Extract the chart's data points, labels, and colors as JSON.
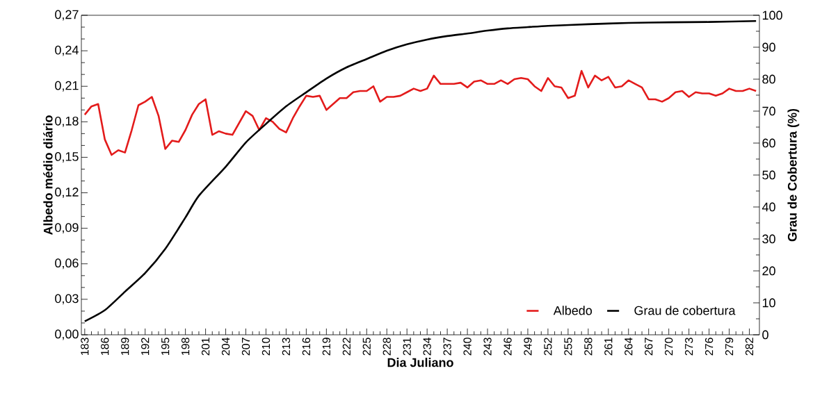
{
  "chart_data": {
    "type": "line",
    "xlabel": "Dia Juliano",
    "ylabel": "Albedo médio diário",
    "y2label": "Grau de Cobertura (%)",
    "xlim": [
      182.5,
      283.5
    ],
    "xticks": [
      183,
      186,
      189,
      192,
      195,
      198,
      201,
      204,
      207,
      210,
      213,
      216,
      219,
      222,
      225,
      228,
      231,
      234,
      237,
      240,
      243,
      246,
      249,
      252,
      255,
      258,
      261,
      264,
      267,
      270,
      273,
      276,
      279,
      282
    ],
    "ylim": [
      0,
      0.27
    ],
    "yticks": [
      {
        "value": 0,
        "label": "0,00"
      },
      {
        "value": 0.03,
        "label": "0,03"
      },
      {
        "value": 0.06,
        "label": "0,06"
      },
      {
        "value": 0.09,
        "label": "0,09"
      },
      {
        "value": 0.12,
        "label": "0,12"
      },
      {
        "value": 0.15,
        "label": "0,15"
      },
      {
        "value": 0.18,
        "label": "0,18"
      },
      {
        "value": 0.21,
        "label": "0,21"
      },
      {
        "value": 0.24,
        "label": "0,24"
      },
      {
        "value": 0.27,
        "label": "0,27"
      }
    ],
    "y2lim": [
      0,
      100
    ],
    "y2ticks": [
      0,
      10,
      20,
      30,
      40,
      50,
      60,
      70,
      80,
      90,
      100
    ],
    "legend": "bottom right",
    "grid": false,
    "series": [
      {
        "name": "Albedo",
        "color": "#e31b1b",
        "x": [
          183,
          184,
          185,
          186,
          187,
          188,
          189,
          190,
          191,
          192,
          193,
          194,
          195,
          196,
          197,
          198,
          199,
          200,
          201,
          202,
          203,
          204,
          205,
          206,
          207,
          208,
          209,
          210,
          211,
          212,
          213,
          214,
          215,
          216,
          217,
          218,
          219,
          220,
          221,
          222,
          223,
          224,
          225,
          226,
          227,
          228,
          229,
          230,
          231,
          232,
          233,
          234,
          235,
          236,
          237,
          238,
          239,
          240,
          241,
          242,
          243,
          244,
          245,
          246,
          247,
          248,
          249,
          250,
          251,
          252,
          253,
          254,
          255,
          256,
          257,
          258,
          259,
          260,
          261,
          262,
          263,
          264,
          265,
          266,
          267,
          268,
          269,
          270,
          271,
          272,
          273,
          274,
          275,
          276,
          277,
          278,
          279,
          280,
          281,
          282,
          283
        ],
        "values": [
          0.186,
          0.193,
          0.195,
          0.165,
          0.152,
          0.156,
          0.154,
          0.173,
          0.194,
          0.197,
          0.201,
          0.185,
          0.157,
          0.164,
          0.163,
          0.173,
          0.186,
          0.195,
          0.199,
          0.169,
          0.172,
          0.17,
          0.169,
          0.179,
          0.189,
          0.185,
          0.173,
          0.183,
          0.18,
          0.174,
          0.171,
          0.183,
          0.193,
          0.202,
          0.201,
          0.202,
          0.19,
          0.195,
          0.2,
          0.2,
          0.205,
          0.206,
          0.206,
          0.21,
          0.197,
          0.201,
          0.201,
          0.202,
          0.205,
          0.208,
          0.206,
          0.208,
          0.219,
          0.212,
          0.212,
          0.212,
          0.213,
          0.209,
          0.214,
          0.215,
          0.212,
          0.212,
          0.215,
          0.212,
          0.216,
          0.217,
          0.216,
          0.21,
          0.206,
          0.217,
          0.21,
          0.209,
          0.2,
          0.202,
          0.223,
          0.209,
          0.219,
          0.215,
          0.218,
          0.209,
          0.21,
          0.215,
          0.212,
          0.209,
          0.199,
          0.199,
          0.197,
          0.2,
          0.205,
          0.206,
          0.201,
          0.205,
          0.204,
          0.204,
          0.202,
          0.204,
          0.208,
          0.206,
          0.206,
          0.208,
          0.206
        ]
      },
      {
        "name": "Grau de cobertura",
        "color": "#000000",
        "axis": "y2",
        "x": [
          183,
          186,
          189,
          192,
          195,
          198,
          200,
          204,
          207,
          210,
          213,
          216,
          219,
          222,
          225,
          228,
          231,
          234,
          237,
          240,
          243,
          246,
          249,
          252,
          258,
          264,
          270,
          276,
          283
        ],
        "values": [
          4.2,
          7.7,
          13.5,
          19.3,
          26.9,
          36.7,
          43.5,
          52.6,
          60.2,
          66,
          71.5,
          75.9,
          80.2,
          83.7,
          86.3,
          88.9,
          90.9,
          92.4,
          93.5,
          94.3,
          95.2,
          95.9,
          96.3,
          96.7,
          97.2,
          97.6,
          97.8,
          97.9,
          98.2
        ]
      }
    ]
  }
}
